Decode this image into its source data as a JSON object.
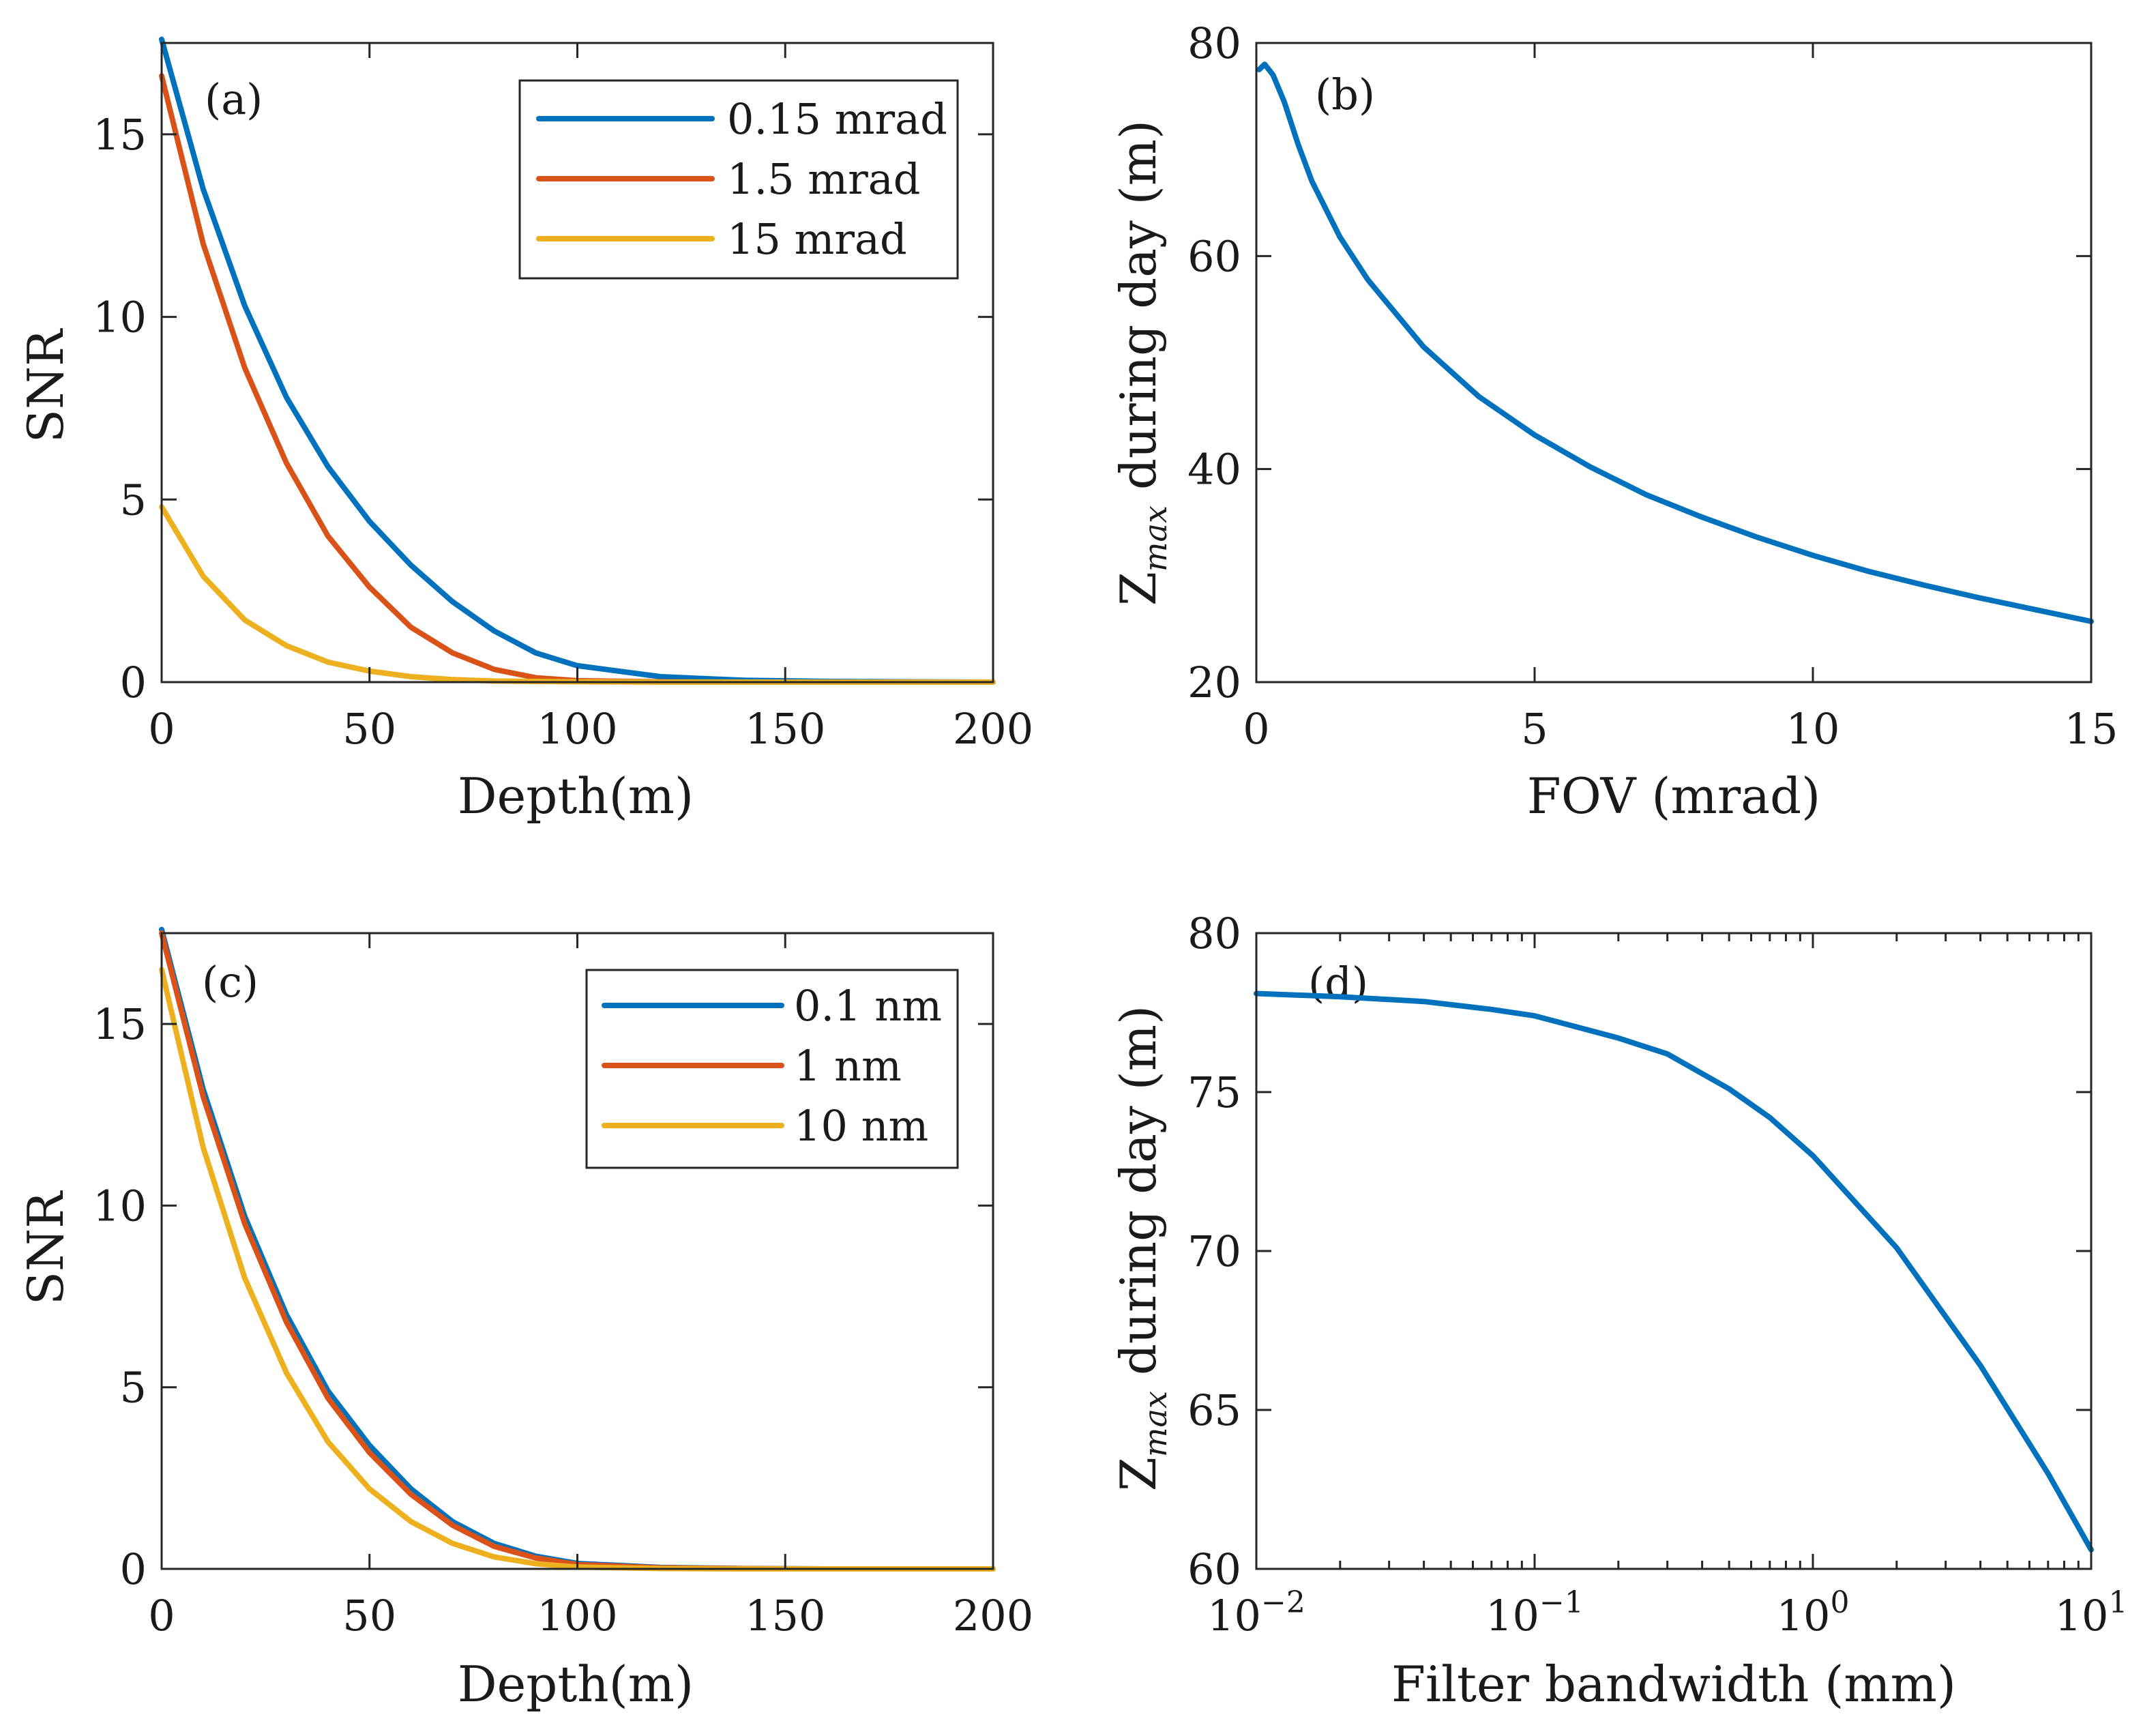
{
  "colors": {
    "blue": "#0072BD",
    "orange": "#D95319",
    "yellow": "#EDB120",
    "axis": "#262626"
  },
  "chart_data": [
    {
      "type": "line",
      "panel_label": "(a)",
      "xlabel": "Depth(m)",
      "ylabel": "SNR",
      "xlim": [
        0,
        200
      ],
      "ylim": [
        0,
        17.5
      ],
      "xticks": [
        0,
        50,
        100,
        150,
        200
      ],
      "yticks": [
        0,
        5,
        10,
        15
      ],
      "xtick_labels": [
        "0",
        "50",
        "100",
        "150",
        "200"
      ],
      "ytick_labels": [
        "0",
        "5",
        "10",
        "15"
      ],
      "legend_position": "top-right",
      "series": [
        {
          "name": "0.15 mrad",
          "color": "#0072BD",
          "x": [
            0,
            10,
            20,
            30,
            40,
            50,
            60,
            70,
            80,
            90,
            100,
            120,
            140,
            160,
            180,
            200
          ],
          "y": [
            17.6,
            13.5,
            10.3,
            7.8,
            5.9,
            4.4,
            3.2,
            2.2,
            1.4,
            0.8,
            0.45,
            0.15,
            0.05,
            0.02,
            0.01,
            0
          ]
        },
        {
          "name": "1.5 mrad",
          "color": "#D95319",
          "x": [
            0,
            10,
            20,
            30,
            40,
            50,
            60,
            70,
            80,
            90,
            100,
            120,
            140,
            160,
            180,
            200
          ],
          "y": [
            16.6,
            12.0,
            8.6,
            6.0,
            4.0,
            2.6,
            1.5,
            0.8,
            0.35,
            0.12,
            0.04,
            0.01,
            0,
            0,
            0,
            0
          ]
        },
        {
          "name": "15 mrad",
          "color": "#EDB120",
          "x": [
            0,
            10,
            20,
            30,
            40,
            50,
            60,
            70,
            80,
            100,
            120,
            150,
            200
          ],
          "y": [
            4.8,
            2.9,
            1.7,
            1.0,
            0.55,
            0.3,
            0.15,
            0.07,
            0.03,
            0.01,
            0,
            0,
            0
          ]
        }
      ]
    },
    {
      "type": "line",
      "panel_label": "(b)",
      "xlabel": "FOV (mrad)",
      "ylabel_main": "Z",
      "ylabel_sub": "max",
      "ylabel_rest": " during day (m)",
      "xlim": [
        0,
        15
      ],
      "ylim": [
        20,
        80
      ],
      "xticks": [
        0,
        5,
        10,
        15
      ],
      "yticks": [
        20,
        40,
        60,
        80
      ],
      "xtick_labels": [
        "0",
        "5",
        "10",
        "15"
      ],
      "ytick_labels": [
        "20",
        "40",
        "60",
        "80"
      ],
      "series": [
        {
          "name": "Zmax",
          "color": "#0072BD",
          "x": [
            0.05,
            0.15,
            0.3,
            0.5,
            0.75,
            1.0,
            1.5,
            2.0,
            3.0,
            4.0,
            5.0,
            6.0,
            7.0,
            8.0,
            9.0,
            10.0,
            11.0,
            12.0,
            13.0,
            14.0,
            15.0
          ],
          "y": [
            77.5,
            78.0,
            77.0,
            74.5,
            70.5,
            67.0,
            61.8,
            57.8,
            51.5,
            46.8,
            43.2,
            40.2,
            37.6,
            35.5,
            33.6,
            31.9,
            30.4,
            29.1,
            27.9,
            26.8,
            25.7
          ]
        }
      ]
    },
    {
      "type": "line",
      "panel_label": "(c)",
      "xlabel": "Depth(m)",
      "ylabel": "SNR",
      "xlim": [
        0,
        200
      ],
      "ylim": [
        0,
        17.5
      ],
      "xticks": [
        0,
        50,
        100,
        150,
        200
      ],
      "yticks": [
        0,
        5,
        10,
        15
      ],
      "xtick_labels": [
        "0",
        "50",
        "100",
        "150",
        "200"
      ],
      "ytick_labels": [
        "0",
        "5",
        "10",
        "15"
      ],
      "legend_position": "top-right",
      "series": [
        {
          "name": "0.1 nm",
          "color": "#0072BD",
          "x": [
            0,
            10,
            20,
            30,
            40,
            50,
            60,
            70,
            80,
            90,
            100,
            120,
            140,
            160,
            180,
            200
          ],
          "y": [
            17.6,
            13.2,
            9.7,
            7.0,
            4.9,
            3.4,
            2.2,
            1.3,
            0.7,
            0.35,
            0.15,
            0.04,
            0.01,
            0,
            0,
            0
          ]
        },
        {
          "name": "1 nm",
          "color": "#D95319",
          "x": [
            0,
            10,
            20,
            30,
            40,
            50,
            60,
            70,
            80,
            90,
            100,
            120,
            140,
            160,
            180,
            200
          ],
          "y": [
            17.5,
            13.0,
            9.5,
            6.8,
            4.7,
            3.2,
            2.05,
            1.2,
            0.62,
            0.3,
            0.12,
            0.03,
            0.01,
            0,
            0,
            0
          ]
        },
        {
          "name": "10 nm",
          "color": "#EDB120",
          "x": [
            0,
            10,
            20,
            30,
            40,
            50,
            60,
            70,
            80,
            90,
            100,
            120,
            140,
            160,
            180,
            200
          ],
          "y": [
            16.5,
            11.6,
            8.0,
            5.4,
            3.5,
            2.2,
            1.3,
            0.7,
            0.33,
            0.14,
            0.05,
            0.01,
            0,
            0,
            0,
            0
          ]
        }
      ]
    },
    {
      "type": "line",
      "panel_label": "(d)",
      "xlabel": "Filter bandwidth (mm)",
      "ylabel_main": "Z",
      "ylabel_sub": "max",
      "ylabel_rest": " during day (m)",
      "xscale": "log",
      "xlim": [
        0.01,
        10
      ],
      "ylim": [
        60,
        80
      ],
      "xticks": [
        0.01,
        0.1,
        1,
        10
      ],
      "yticks": [
        60,
        65,
        70,
        75,
        80
      ],
      "xtick_labels": [
        {
          "base": "10",
          "exp": "−2"
        },
        {
          "base": "10",
          "exp": "−1"
        },
        {
          "base": "10",
          "exp": "0"
        },
        {
          "base": "10",
          "exp": "1"
        }
      ],
      "ytick_labels": [
        "60",
        "65",
        "70",
        "75",
        "80"
      ],
      "series": [
        {
          "name": "Zmax",
          "color": "#0072BD",
          "x": [
            0.01,
            0.02,
            0.04,
            0.07,
            0.1,
            0.2,
            0.3,
            0.5,
            0.7,
            1.0,
            2.0,
            4.0,
            7.0,
            10.0
          ],
          "y": [
            78.1,
            78.0,
            77.85,
            77.6,
            77.4,
            76.7,
            76.2,
            75.1,
            74.2,
            73.0,
            70.1,
            66.4,
            63.0,
            60.6
          ]
        }
      ]
    }
  ]
}
